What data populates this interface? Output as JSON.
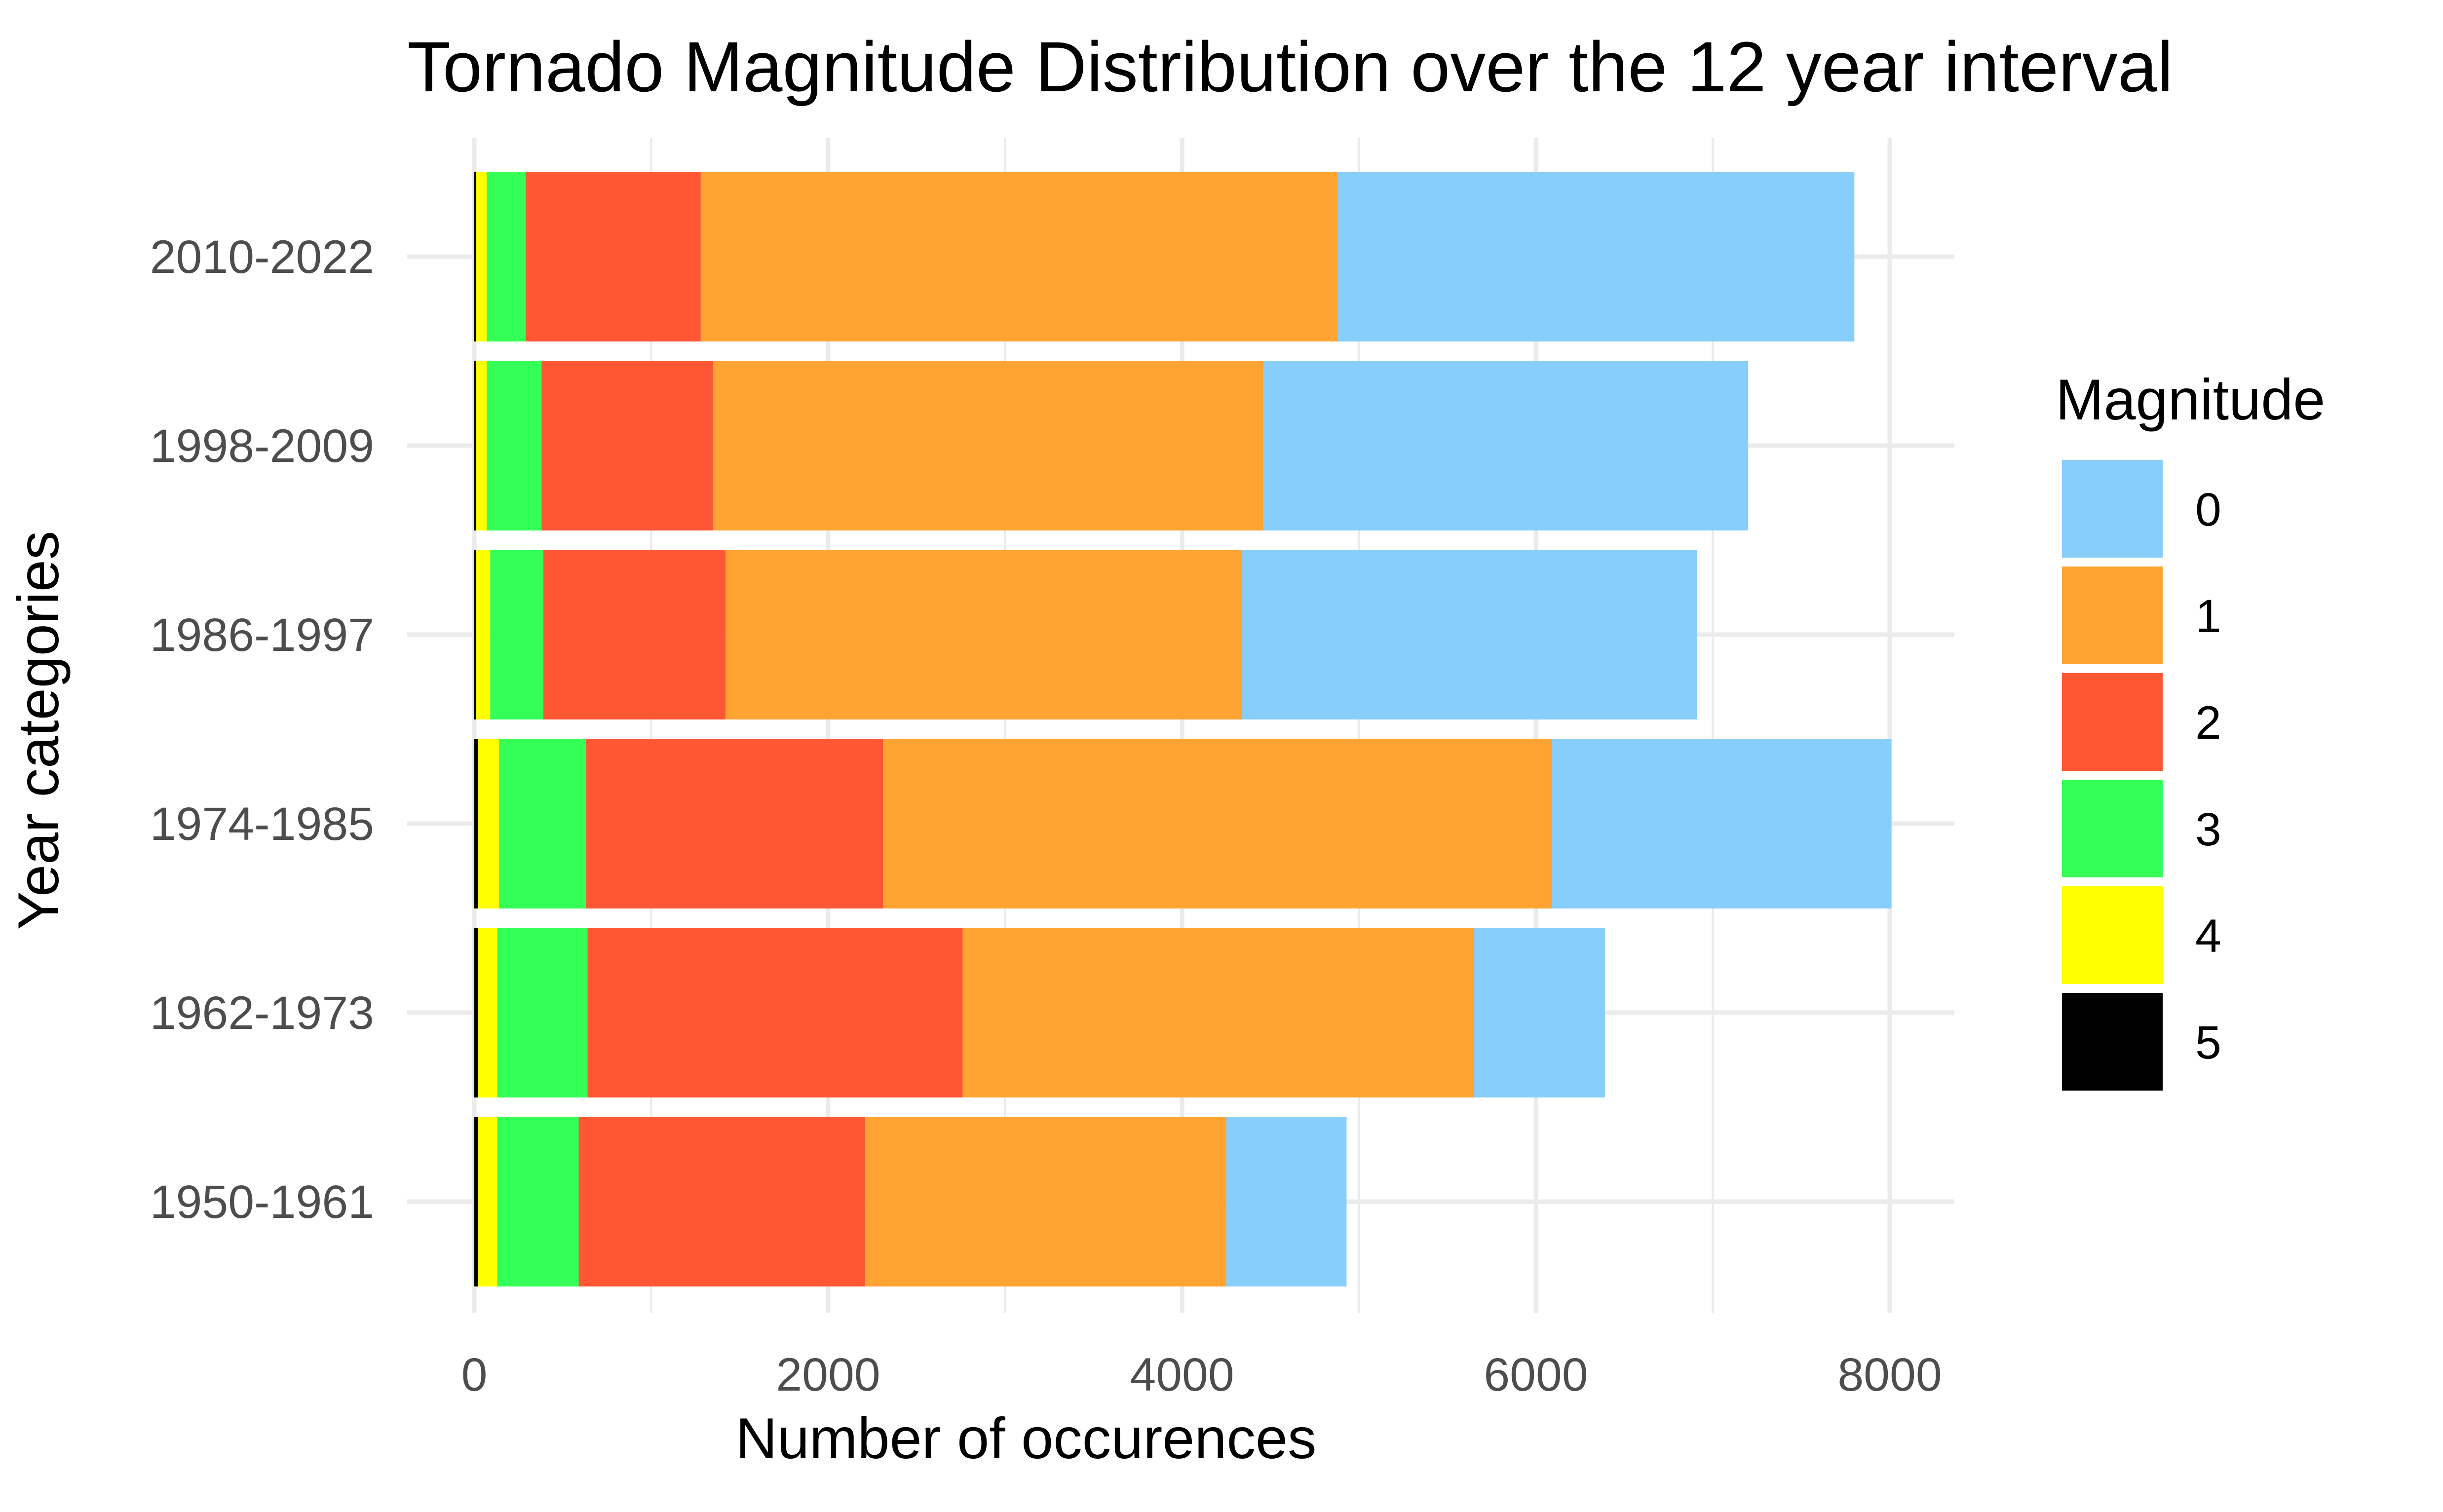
{
  "chart_data": {
    "type": "bar",
    "orientation": "horizontal",
    "stacked": true,
    "title": "Tornado Magnitude Distribution over the 12 year interval",
    "xlabel": "Number of occurences",
    "ylabel": "Year categories",
    "xlim": [
      0,
      8400
    ],
    "x_ticks": [
      0,
      2000,
      4000,
      6000,
      8000
    ],
    "x_tick_labels": [
      "0",
      "2000",
      "4000",
      "6000",
      "8000"
    ],
    "categories": [
      "1950-1961",
      "1962-1973",
      "1974-1985",
      "1986-1997",
      "1998-2009",
      "2010-2022"
    ],
    "stack_order": [
      "5",
      "4",
      "3",
      "2",
      "1",
      "0"
    ],
    "series": [
      {
        "name": "0",
        "color": "#87CEFA",
        "values": [
          680,
          740,
          1920,
          2570,
          2740,
          2920
        ]
      },
      {
        "name": "1",
        "color": "#FFA333",
        "values": [
          2040,
          2890,
          3780,
          2920,
          3110,
          3600
        ]
      },
      {
        "name": "2",
        "color": "#FF5733",
        "values": [
          1620,
          2120,
          1680,
          1030,
          970,
          990
        ]
      },
      {
        "name": "3",
        "color": "#33FF57",
        "values": [
          460,
          510,
          490,
          300,
          310,
          220
        ]
      },
      {
        "name": "4",
        "color": "#FFFF00",
        "values": [
          110,
          110,
          120,
          80,
          60,
          60
        ]
      },
      {
        "name": "5",
        "color": "#000000",
        "values": [
          20,
          20,
          20,
          10,
          10,
          10
        ]
      }
    ],
    "grid": true,
    "legend": {
      "title": "Magnitude",
      "position": "right",
      "entries": [
        "0",
        "1",
        "2",
        "3",
        "4",
        "5"
      ]
    }
  }
}
